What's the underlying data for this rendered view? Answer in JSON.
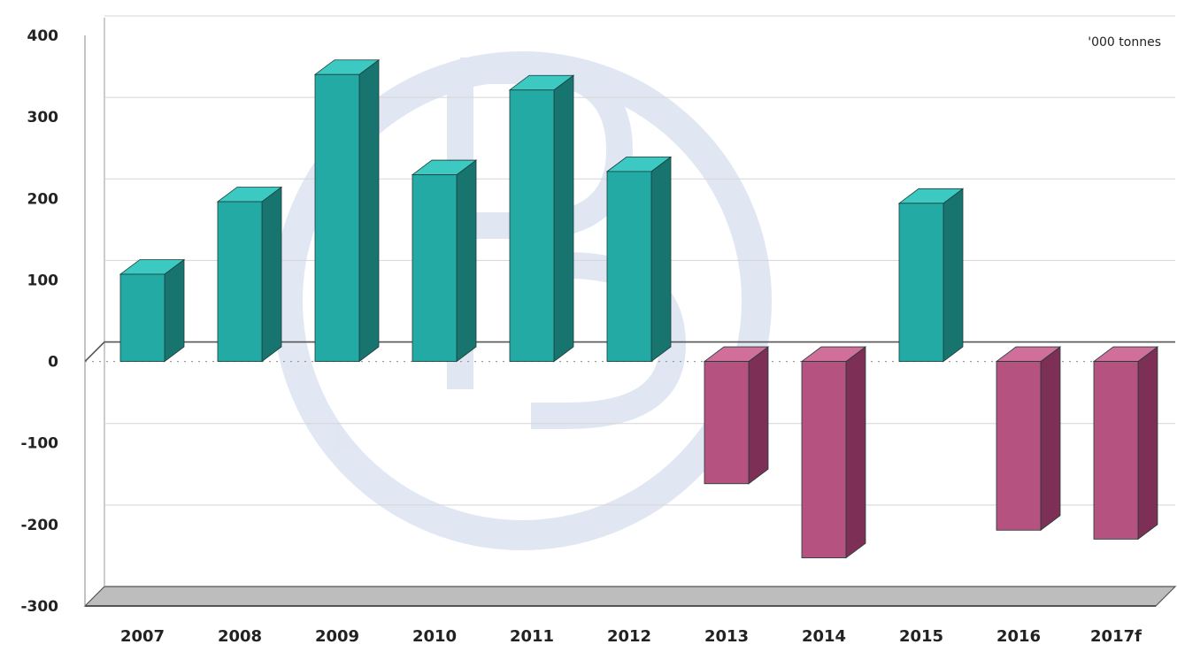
{
  "chart_data": {
    "type": "bar",
    "title": "",
    "xlabel": "",
    "ylabel": "",
    "unit_label": "'000 tonnes",
    "categories": [
      "2007",
      "2008",
      "2009",
      "2010",
      "2011",
      "2012",
      "2013",
      "2014",
      "2015",
      "2016",
      "2017f"
    ],
    "values": [
      107,
      196,
      352,
      229,
      333,
      233,
      -150,
      -241,
      194,
      -207,
      -218
    ],
    "ylim": [
      -300,
      400
    ],
    "yticks": [
      "400",
      "300",
      "200",
      "100",
      "0",
      "-100",
      "-200",
      "-300"
    ],
    "grid": true,
    "legend": "none",
    "colors": {
      "positive_front": "#23aaa4",
      "positive_side": "#17746f",
      "positive_top": "#3cc9c2",
      "negative_front": "#b5527f",
      "negative_side": "#7e2f55",
      "negative_top": "#cf6f9a",
      "floor": "#bdbdbd",
      "watermark": "#c9d3ea"
    }
  }
}
